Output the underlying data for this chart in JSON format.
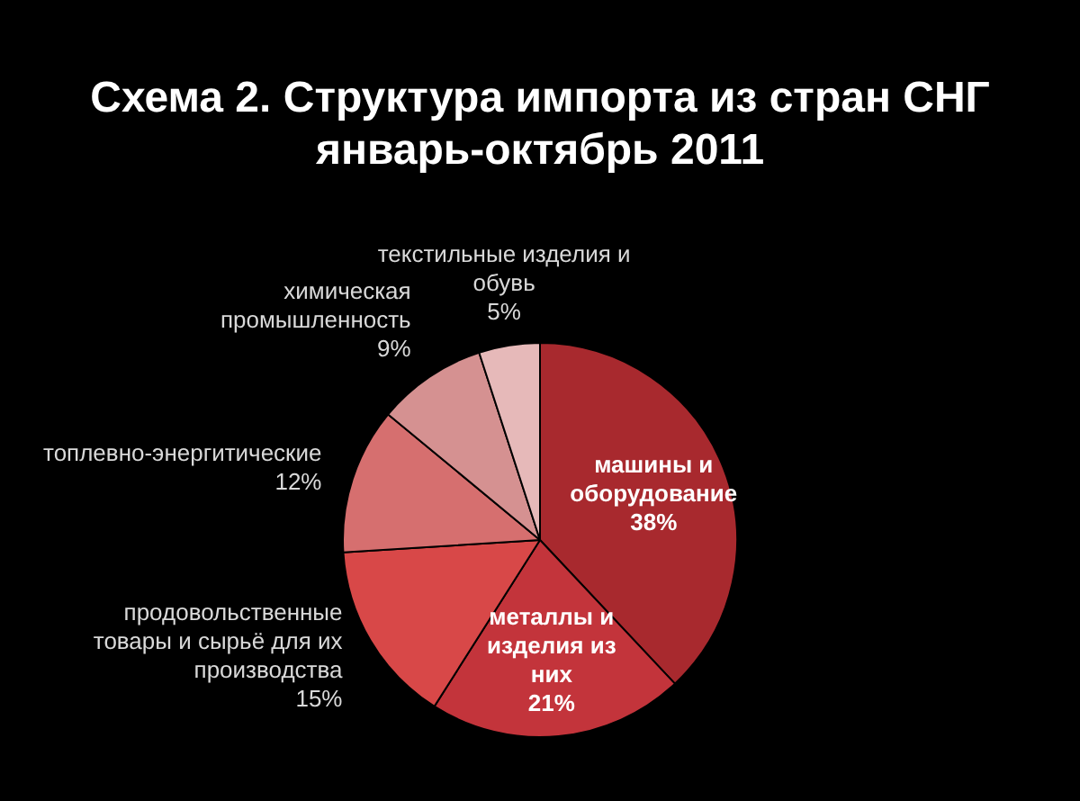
{
  "chart_data": {
    "type": "pie",
    "title": "Схема 2. Структура импорта из стран СНГ январь-октябрь 2011",
    "categories": [
      "машины и оборудование",
      "металлы и изделия из них",
      "продовольственные товары и сырьё для их производства",
      "топлевно-энергитические",
      "химическая промышленность",
      "текстильные изделия и обувь"
    ],
    "values": [
      38,
      21,
      15,
      12,
      9,
      5
    ],
    "value_labels": [
      "38%",
      "21%",
      "15%",
      "12%",
      "9%",
      "5%"
    ],
    "colors": [
      "#a8292e",
      "#c3343b",
      "#d84848",
      "#d66f6f",
      "#d59191",
      "#e6b9b9"
    ]
  }
}
